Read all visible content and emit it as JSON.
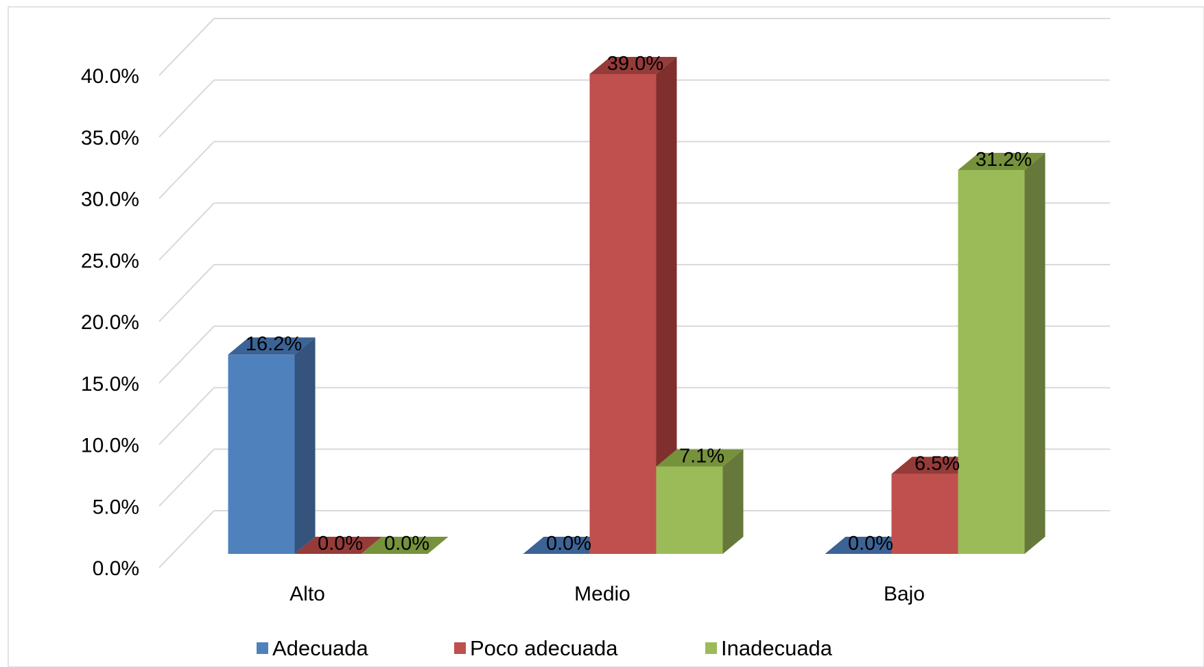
{
  "chart_data": {
    "type": "bar",
    "categories": [
      "Alto",
      "Medio",
      "Bajo"
    ],
    "series": [
      {
        "name": "Adecuada",
        "values": [
          16.2,
          0.0,
          0.0
        ],
        "labels": [
          "16.2%",
          "0.0%",
          "0.0%"
        ]
      },
      {
        "name": "Poco adecuada",
        "values": [
          0.0,
          39.0,
          6.5
        ],
        "labels": [
          "0.0%",
          "39.0%",
          "6.5%"
        ]
      },
      {
        "name": "Inadecuada",
        "values": [
          0.0,
          7.1,
          31.2
        ],
        "labels": [
          "0.0%",
          "7.1%",
          "31.2%"
        ]
      }
    ],
    "yticks": [
      "0.0%",
      "5.0%",
      "10.0%",
      "15.0%",
      "20.0%",
      "25.0%",
      "30.0%",
      "35.0%",
      "40.0%"
    ],
    "ylim": [
      0,
      40
    ],
    "grid": true,
    "legend_position": "bottom",
    "colors": {
      "Adecuada": {
        "front": "#4F81BD",
        "side": "#34547E",
        "top": "#3C6395"
      },
      "Poco adecuada": {
        "front": "#C0504D",
        "side": "#7F2F2D",
        "top": "#953B39"
      },
      "Inadecuada": {
        "front": "#9BBB59",
        "side": "#67793A",
        "top": "#76923C"
      }
    }
  }
}
